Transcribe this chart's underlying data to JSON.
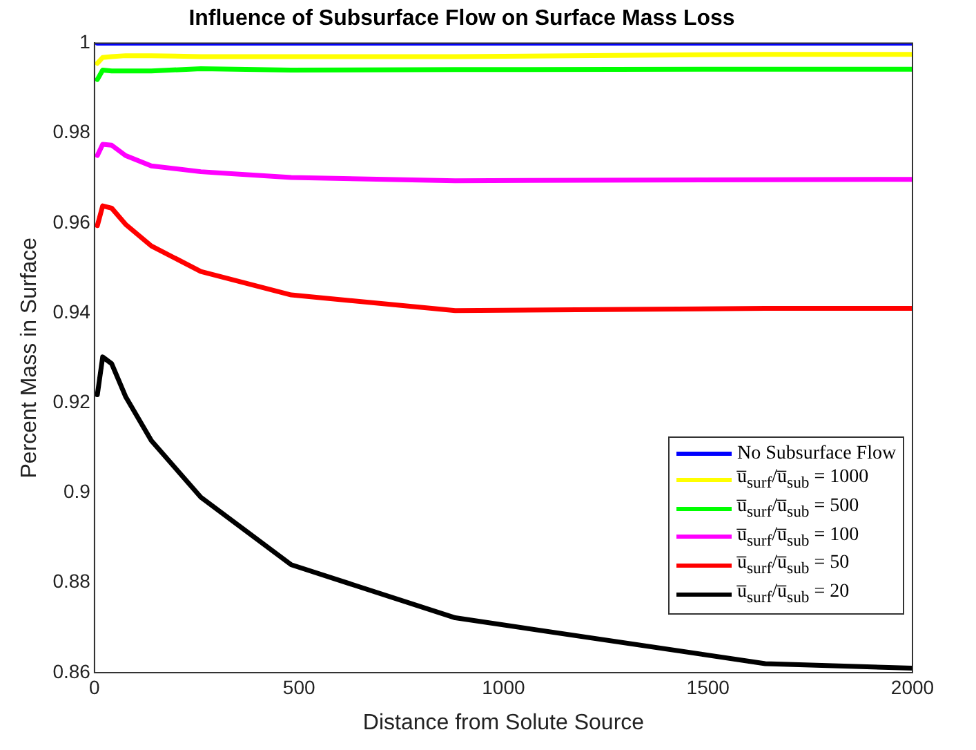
{
  "chart_data": {
    "type": "line",
    "title": "Influence of Subsurface Flow on Surface Mass Loss",
    "xlabel": "Distance from Solute Source",
    "ylabel": "Percent Mass in Surface",
    "x": [
      7,
      20,
      42,
      76,
      139,
      260,
      481,
      882,
      1640,
      2000
    ],
    "series": [
      {
        "name": "No Subsurface Flow",
        "color": "#0000ff",
        "values": [
          1,
          1,
          1,
          1,
          1,
          1,
          1,
          1,
          1,
          1
        ]
      },
      {
        "name": "u̅$_{surf}$/u̅$_{sub}$ = 1000",
        "color": "#ffff00",
        "values": [
          0.9955,
          0.9968,
          0.997,
          0.9972,
          0.9972,
          0.997,
          0.997,
          0.997,
          0.9975,
          0.9975
        ]
      },
      {
        "name": "u̅$_{surf}$/u̅$_{sub}$ = 500",
        "color": "#00ff00",
        "values": [
          0.9919,
          0.994,
          0.9938,
          0.9938,
          0.9938,
          0.9943,
          0.994,
          0.9941,
          0.9942,
          0.9942
        ]
      },
      {
        "name": "u̅$_{surf}$/u̅$_{sub}$ = 100",
        "color": "#ff00ff",
        "values": [
          0.975,
          0.9775,
          0.9773,
          0.975,
          0.9727,
          0.9714,
          0.9701,
          0.9694,
          0.9696,
          0.9697
        ]
      },
      {
        "name": "u̅$_{surf}$/u̅$_{sub}$ = 50",
        "color": "#ff0000",
        "values": [
          0.9594,
          0.9638,
          0.9633,
          0.9597,
          0.9549,
          0.9492,
          0.944,
          0.9405,
          0.941,
          0.941
        ]
      },
      {
        "name": "u̅$_{surf}$/u̅$_{sub}$ = 20",
        "color": "#000000",
        "values": [
          0.9218,
          0.9302,
          0.9287,
          0.9214,
          0.9116,
          0.899,
          0.884,
          0.8722,
          0.862,
          0.861
        ]
      }
    ],
    "xlim": [
      0,
      2000
    ],
    "xticks": [
      0,
      500,
      1000,
      1500,
      2000
    ],
    "ylim": [
      0.86,
      1
    ],
    "yticks": [
      0.86,
      0.88,
      0.9,
      0.92,
      0.94,
      0.96,
      0.98,
      1
    ],
    "legend": "bottom right",
    "marker": "none",
    "line_style": "solid"
  }
}
